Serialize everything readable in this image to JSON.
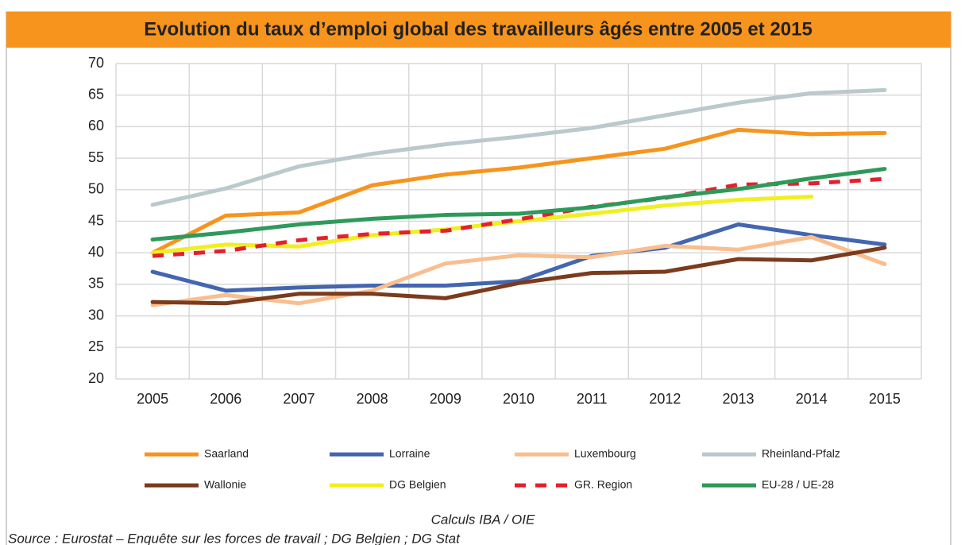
{
  "chart_data": {
    "type": "line",
    "title": "Evolution du taux d’emploi global des travailleurs âgés entre 2005 et 2015",
    "categories": [
      "2005",
      "2006",
      "2007",
      "2008",
      "2009",
      "2010",
      "2011",
      "2012",
      "2013",
      "2014",
      "2015"
    ],
    "series": [
      {
        "name": "Saarland",
        "color": "#f7941d",
        "values": [
          40.0,
          45.9,
          46.4,
          50.7,
          52.4,
          53.5,
          55.0,
          56.5,
          59.5,
          58.8,
          59.0
        ]
      },
      {
        "name": "Lorraine",
        "color": "#4466b0",
        "values": [
          37.0,
          34.0,
          34.5,
          34.8,
          34.8,
          35.5,
          39.5,
          40.8,
          44.5,
          42.8,
          41.3
        ]
      },
      {
        "name": "Luxembourg",
        "color": "#f9be8f",
        "values": [
          31.7,
          33.3,
          32.0,
          34.0,
          38.3,
          39.6,
          39.3,
          41.1,
          40.5,
          42.5,
          38.2
        ]
      },
      {
        "name": "Rheinland-Pfalz",
        "color": "#b9c9cc",
        "values": [
          47.6,
          50.2,
          53.7,
          55.7,
          57.2,
          58.4,
          59.8,
          61.8,
          63.8,
          65.3,
          65.8
        ]
      },
      {
        "name": "Wallonie",
        "color": "#7b3b1d",
        "values": [
          32.2,
          32.0,
          33.5,
          33.5,
          32.8,
          35.2,
          36.8,
          37.0,
          39.0,
          38.8,
          40.8
        ]
      },
      {
        "name": "DG Belgien",
        "color": "#f0ef1f",
        "values": [
          40.0,
          41.3,
          41.0,
          42.8,
          43.7,
          45.0,
          46.2,
          47.5,
          48.4,
          48.9,
          null
        ]
      },
      {
        "name": "GR. Region",
        "color": "#e5202b",
        "dashed": true,
        "values": [
          39.5,
          40.3,
          42.0,
          43.0,
          43.5,
          45.3,
          47.3,
          48.7,
          50.8,
          51.0,
          51.7
        ]
      },
      {
        "name": "EU-28 / UE-28",
        "color": "#2e9a5a",
        "values": [
          42.1,
          43.2,
          44.5,
          45.4,
          46.0,
          46.2,
          47.2,
          48.8,
          50.1,
          51.8,
          53.3
        ]
      }
    ],
    "ylim": [
      20,
      70
    ],
    "yticks": [
      20,
      25,
      30,
      35,
      40,
      45,
      50,
      55,
      60,
      65,
      70
    ],
    "grid": true,
    "legend": "bottom",
    "annotations": [
      "Calculs IBA / OIE",
      "Source : Eurostat – Enquête sur les forces de travail ; DG Belgien ; DG Stat"
    ]
  }
}
